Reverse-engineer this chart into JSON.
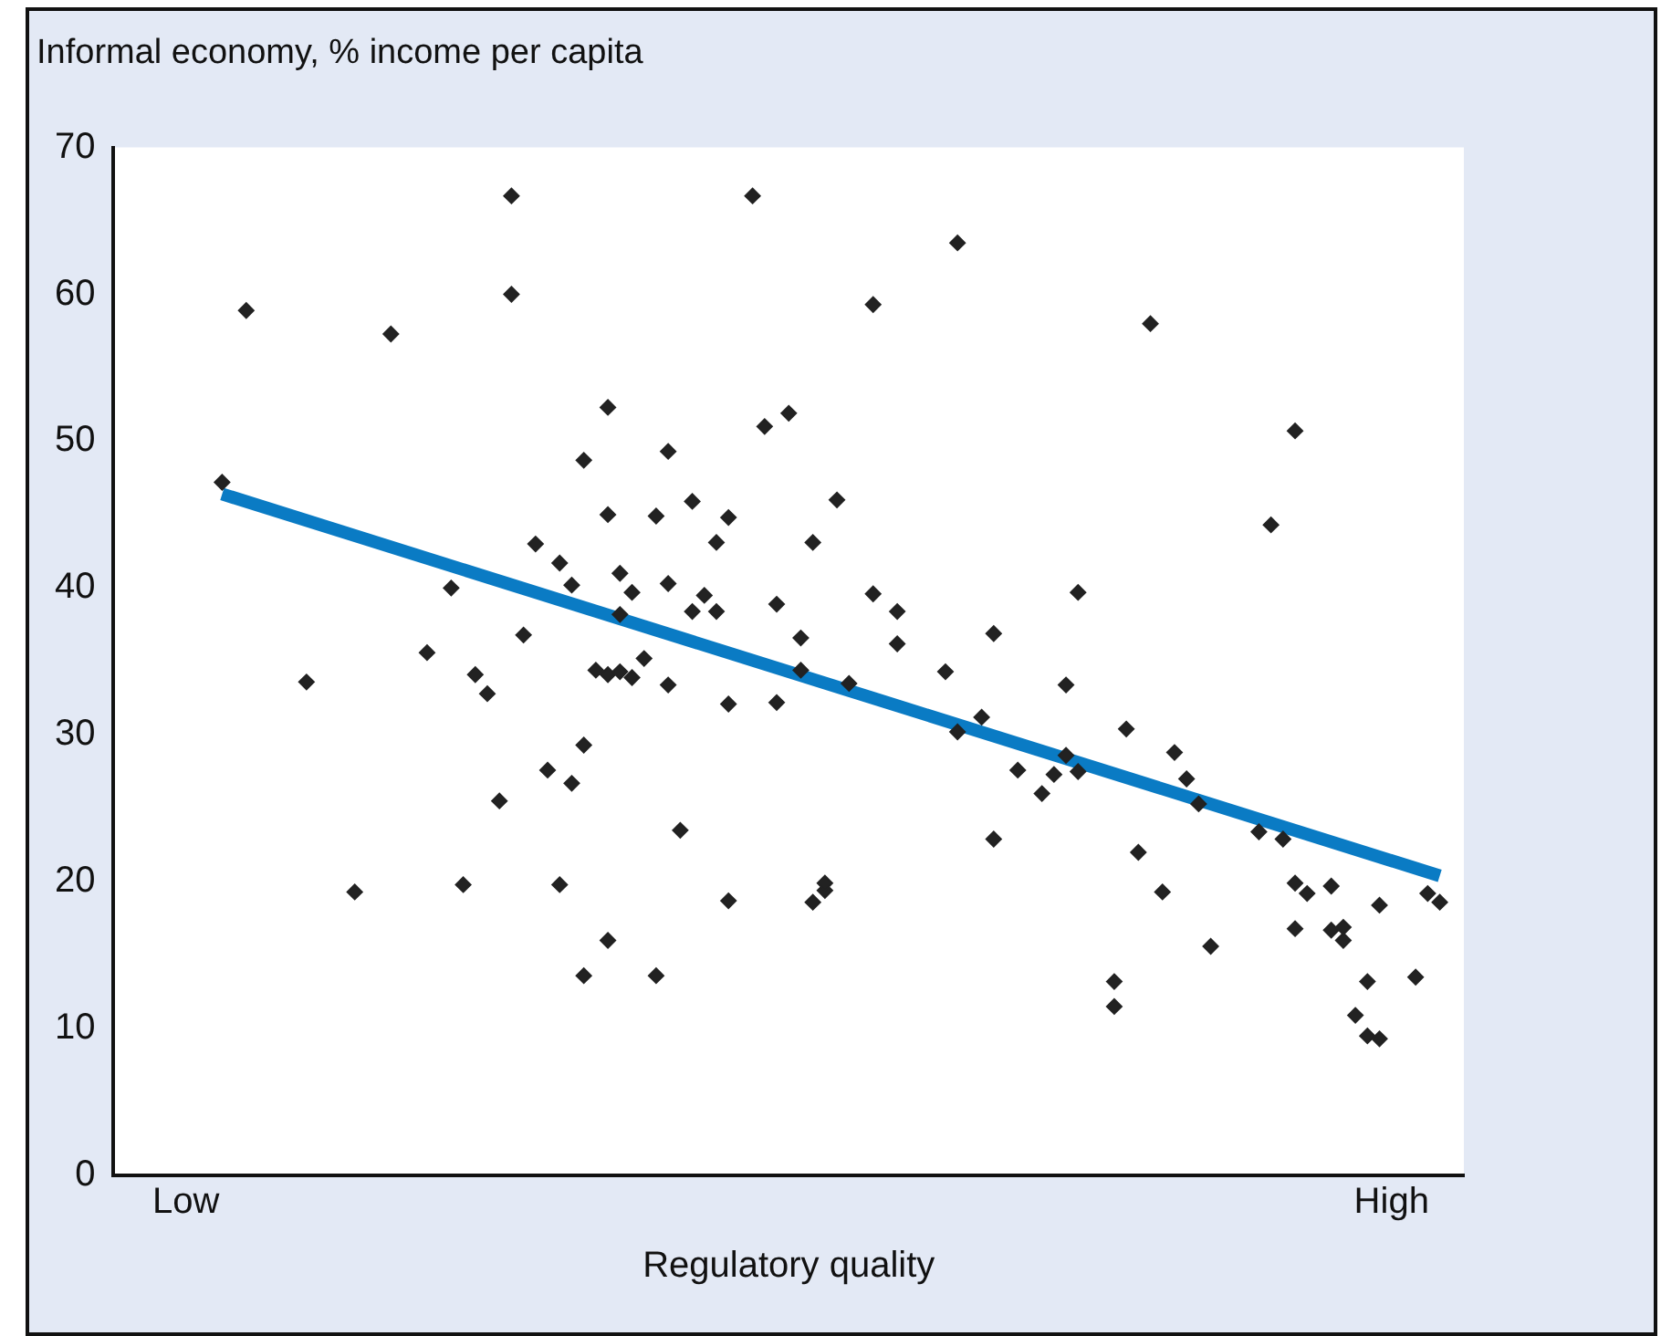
{
  "chart_data": {
    "type": "scatter",
    "ylabel": "Informal economy, % income per capita",
    "xlabel": "Regulatory quality",
    "categories": [
      null,
      null,
      null,
      null,
      null,
      null,
      "Low",
      null,
      null,
      null,
      null,
      null,
      null,
      null,
      null,
      null,
      null,
      null,
      null,
      null,
      null,
      null,
      null,
      null,
      null,
      null,
      null,
      null,
      null,
      null,
      null,
      null,
      null,
      null,
      null,
      null,
      null,
      null,
      null,
      null,
      null,
      null,
      null,
      null,
      null,
      null,
      null,
      null,
      null,
      null,
      null,
      null,
      null,
      null,
      null,
      null,
      null,
      null,
      null,
      null,
      null,
      null,
      null,
      null,
      null,
      null,
      null,
      null,
      null,
      null,
      null,
      null,
      null,
      null,
      null,
      null,
      null,
      null,
      null,
      null,
      null,
      null,
      null,
      null,
      null,
      null,
      null,
      null,
      null,
      null,
      null,
      null,
      null,
      null,
      null,
      null,
      null,
      null,
      null,
      null,
      null,
      null,
      null,
      null,
      null,
      null,
      "High",
      null,
      null,
      null,
      null,
      null,
      null
    ],
    "ylim": [
      0,
      70
    ],
    "yticks": [
      0,
      10,
      20,
      30,
      40,
      50,
      60,
      70
    ],
    "grid": false,
    "legend": false,
    "marker": "diamond",
    "series": [
      {
        "color": "#222222",
        "values": [
          null,
          null,
          null,
          null,
          null,
          null,
          null,
          null,
          null,
          47.2,
          null,
          58.9,
          null,
          null,
          null,
          null,
          33.6,
          null,
          null,
          null,
          19.3,
          null,
          null,
          57.3,
          null,
          null,
          35.6,
          null,
          40.0,
          19.8,
          34.1,
          32.8,
          25.5,
          66.7,
          36.8,
          43.0,
          27.6,
          41.7,
          40.2,
          13.6,
          34.4,
          52.3,
          41.0,
          39.7,
          35.2,
          44.9,
          49.3,
          23.5,
          45.9,
          39.5,
          43.1,
          44.8,
          null,
          66.7,
          51.0,
          38.9,
          51.9,
          36.6,
          43.1,
          19.9,
          46.0,
          33.5,
          null,
          59.3,
          null,
          38.4,
          null,
          null,
          null,
          34.3,
          63.5,
          null,
          31.2,
          36.9,
          null,
          27.6,
          null,
          26.0,
          27.3,
          33.4,
          39.7,
          null,
          null,
          13.2,
          30.4,
          22.0,
          58.0,
          19.3,
          28.8,
          27.0,
          25.3,
          15.6,
          null,
          null,
          null,
          23.4,
          44.3,
          22.9,
          50.7,
          19.2,
          null,
          19.7,
          16.9,
          10.9,
          13.2,
          18.4,
          null,
          null,
          13.5,
          19.2,
          18.6,
          null,
          null
        ]
      },
      {
        "color": "#222222",
        "values": [
          null,
          null,
          null,
          null,
          null,
          null,
          null,
          null,
          null,
          null,
          null,
          null,
          null,
          null,
          null,
          null,
          null,
          null,
          null,
          null,
          null,
          null,
          null,
          null,
          null,
          null,
          null,
          null,
          null,
          null,
          null,
          null,
          null,
          60.0,
          null,
          null,
          null,
          19.8,
          26.7,
          48.7,
          null,
          45.0,
          38.2,
          33.9,
          null,
          13.6,
          40.3,
          null,
          38.4,
          null,
          38.4,
          32.1,
          null,
          null,
          null,
          32.2,
          null,
          34.4,
          18.6,
          19.4,
          null,
          null,
          null,
          39.6,
          null,
          36.2,
          null,
          null,
          null,
          null,
          30.2,
          null,
          null,
          22.9,
          null,
          null,
          null,
          null,
          null,
          28.6,
          27.5,
          null,
          null,
          11.5,
          null,
          null,
          null,
          null,
          null,
          null,
          null,
          null,
          null,
          null,
          null,
          null,
          null,
          null,
          19.9,
          null,
          null,
          16.7,
          16.0,
          null,
          9.5,
          9.3,
          null,
          null,
          null,
          null,
          null,
          null,
          null
        ]
      },
      {
        "color": "#222222",
        "values": [
          null,
          null,
          null,
          null,
          null,
          null,
          null,
          null,
          null,
          null,
          null,
          null,
          null,
          null,
          null,
          null,
          null,
          null,
          null,
          null,
          null,
          null,
          null,
          null,
          null,
          null,
          null,
          null,
          null,
          null,
          null,
          null,
          null,
          null,
          null,
          null,
          null,
          null,
          null,
          29.3,
          null,
          34.1,
          34.3,
          null,
          null,
          null,
          33.4,
          null,
          null,
          null,
          null,
          18.7,
          null,
          null,
          null,
          null,
          null,
          null,
          null,
          null,
          null,
          null,
          null,
          null,
          null,
          null,
          null,
          null,
          null,
          null,
          null,
          null,
          null,
          null,
          null,
          null,
          null,
          null,
          null,
          null,
          null,
          null,
          null,
          null,
          null,
          null,
          null,
          null,
          null,
          null,
          null,
          null,
          null,
          null,
          null,
          null,
          null,
          null,
          16.8,
          null,
          null,
          null,
          null,
          null,
          null,
          null,
          null,
          null,
          null,
          null,
          null,
          null,
          null
        ]
      },
      {
        "color": "#222222",
        "values": [
          null,
          null,
          null,
          null,
          null,
          null,
          null,
          null,
          null,
          null,
          null,
          null,
          null,
          null,
          null,
          null,
          null,
          null,
          null,
          null,
          null,
          null,
          null,
          null,
          null,
          null,
          null,
          null,
          null,
          null,
          null,
          null,
          null,
          null,
          null,
          null,
          null,
          null,
          null,
          null,
          null,
          16.0,
          null,
          null,
          null,
          null,
          null,
          null,
          null,
          null,
          null,
          null,
          null,
          null,
          null,
          null,
          null,
          null,
          null,
          null,
          null,
          null,
          null,
          null,
          null,
          null,
          null,
          null,
          null,
          null,
          null,
          null,
          null,
          null,
          null,
          null,
          null,
          null,
          null,
          null,
          null,
          null,
          null,
          null,
          null,
          null,
          null,
          null,
          null,
          null,
          null,
          null,
          null,
          null,
          null,
          null,
          null,
          null,
          null,
          null,
          null,
          null,
          null,
          null,
          null,
          null,
          null,
          null,
          null,
          null,
          null,
          null,
          null
        ]
      },
      {
        "type": "line",
        "marker": "none",
        "color": "#0a7bc4",
        "values": [
          null,
          null,
          null,
          null,
          null,
          null,
          null,
          null,
          null,
          46.4,
          null,
          null,
          null,
          null,
          null,
          null,
          null,
          null,
          null,
          null,
          null,
          null,
          null,
          null,
          null,
          null,
          null,
          null,
          null,
          null,
          null,
          null,
          null,
          null,
          null,
          null,
          null,
          null,
          null,
          null,
          null,
          null,
          null,
          null,
          null,
          null,
          null,
          null,
          null,
          null,
          null,
          null,
          null,
          null,
          null,
          null,
          null,
          null,
          null,
          null,
          null,
          null,
          null,
          null,
          null,
          null,
          null,
          null,
          null,
          null,
          null,
          null,
          null,
          null,
          null,
          null,
          null,
          null,
          null,
          null,
          null,
          null,
          null,
          null,
          null,
          null,
          null,
          null,
          null,
          null,
          null,
          null,
          null,
          null,
          null,
          null,
          null,
          null,
          null,
          null,
          null,
          null,
          null,
          null,
          null,
          null,
          null,
          null,
          null,
          null,
          20.4,
          null,
          null
        ]
      }
    ]
  }
}
